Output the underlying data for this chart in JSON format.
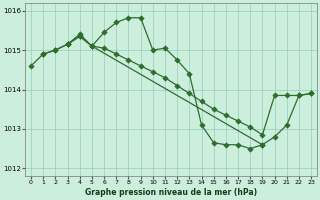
{
  "background_color": "#cceedd",
  "grid_color": "#99ccbb",
  "line_color": "#2d6e2d",
  "marker_color": "#2d6e2d",
  "xlabel": "Graphe pression niveau de la mer (hPa)",
  "xlim": [
    -0.5,
    23.5
  ],
  "ylim": [
    1011.8,
    1016.2
  ],
  "yticks": [
    1012,
    1013,
    1014,
    1015,
    1016
  ],
  "xticks": [
    0,
    1,
    2,
    3,
    4,
    5,
    6,
    7,
    8,
    9,
    10,
    11,
    12,
    13,
    14,
    15,
    16,
    17,
    18,
    19,
    20,
    21,
    22,
    23
  ],
  "line1_x": [
    1,
    2,
    3,
    4,
    5,
    6,
    7,
    8,
    9,
    10,
    11,
    12,
    13,
    14,
    15,
    16,
    17,
    18,
    19
  ],
  "line1_y": [
    1014.9,
    1015.0,
    1015.15,
    1015.4,
    1015.1,
    1015.45,
    1015.7,
    1015.82,
    1015.82,
    1015.0,
    1015.05,
    1014.75,
    1014.4,
    1013.1,
    1012.65,
    1012.6,
    1012.6,
    1012.5,
    1012.6
  ],
  "line2_x": [
    0,
    1,
    2,
    3,
    4,
    5,
    6,
    7,
    8,
    9,
    10,
    11,
    12,
    13,
    14,
    15,
    16,
    17,
    18,
    19,
    20,
    21,
    22,
    23
  ],
  "line2_y": [
    1014.6,
    1014.9,
    1015.0,
    1015.15,
    1015.35,
    1015.1,
    1015.05,
    1014.9,
    1014.75,
    1014.6,
    1014.45,
    1014.3,
    1014.1,
    1013.9,
    1013.7,
    1013.5,
    1013.35,
    1013.2,
    1013.05,
    1012.85,
    1013.85,
    1013.85,
    1013.85,
    1013.9
  ],
  "line3_x": [
    3,
    4,
    5,
    19,
    20,
    21,
    22,
    23
  ],
  "line3_y": [
    1015.15,
    1015.35,
    1015.1,
    1012.6,
    1012.8,
    1013.1,
    1013.85,
    1013.9
  ]
}
